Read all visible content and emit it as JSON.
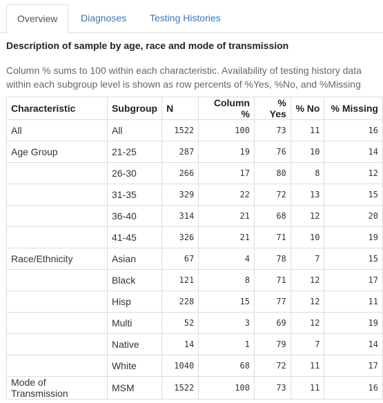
{
  "tabs": [
    {
      "label": "Overview",
      "active": true
    },
    {
      "label": "Diagnoses",
      "active": false
    },
    {
      "label": "Testing Histories",
      "active": false
    }
  ],
  "section": {
    "title": "Description of sample by age, race and mode of transmission",
    "description": "Column % sums to 100 within each characteristic. Availability of testing history data within each subgroup level is shown as row percents of %Yes, %No, and %Missing"
  },
  "table": {
    "headers": [
      "Characteristic",
      "Subgroup",
      "N",
      "Column %",
      "% Yes",
      "% No",
      "% Missing"
    ],
    "rows": [
      [
        "All",
        "All",
        "1522",
        "100",
        "73",
        "11",
        "16"
      ],
      [
        "Age Group",
        "21-25",
        "287",
        "19",
        "76",
        "10",
        "14"
      ],
      [
        "",
        "26-30",
        "266",
        "17",
        "80",
        "8",
        "12"
      ],
      [
        "",
        "31-35",
        "329",
        "22",
        "72",
        "13",
        "15"
      ],
      [
        "",
        "36-40",
        "314",
        "21",
        "68",
        "12",
        "20"
      ],
      [
        "",
        "41-45",
        "326",
        "21",
        "71",
        "10",
        "19"
      ],
      [
        "Race/Ethnicity",
        "Asian",
        "67",
        "4",
        "78",
        "7",
        "15"
      ],
      [
        "",
        "Black",
        "121",
        "8",
        "71",
        "12",
        "17"
      ],
      [
        "",
        "Hisp",
        "228",
        "15",
        "77",
        "12",
        "11"
      ],
      [
        "",
        "Multi",
        "52",
        "3",
        "69",
        "12",
        "19"
      ],
      [
        "",
        "Native",
        "14",
        "1",
        "79",
        "7",
        "14"
      ],
      [
        "",
        "White",
        "1040",
        "68",
        "72",
        "11",
        "17"
      ],
      [
        "Mode of Transmission",
        "MSM",
        "1522",
        "100",
        "73",
        "11",
        "16"
      ]
    ]
  },
  "colors": {
    "link": "#337ab7",
    "border": "#dddddd",
    "muted": "#666666"
  }
}
